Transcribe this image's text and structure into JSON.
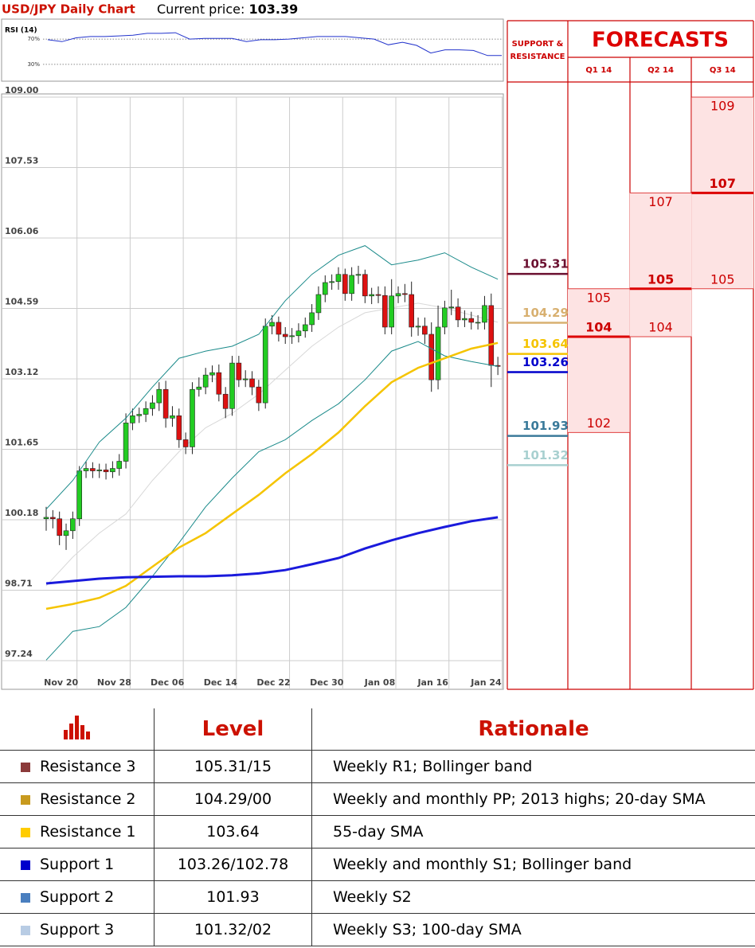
{
  "header": {
    "title": "USD/JPY Daily Chart",
    "price_label": "Current price:",
    "price": 103.39
  },
  "chart_data": [
    {
      "type": "line",
      "title": "RSI (14)",
      "color": "#2233cc",
      "values": [
        69,
        66,
        72,
        74,
        74,
        75,
        76,
        79,
        79,
        80,
        70,
        71,
        71,
        71,
        66,
        69,
        69,
        70,
        72,
        74,
        74,
        74,
        72,
        70,
        61,
        65,
        60,
        48,
        53,
        53,
        52,
        44,
        44
      ],
      "ylim": [
        6,
        94
      ],
      "yticks": [
        {
          "value": 70,
          "label": "70%"
        },
        {
          "value": 30,
          "label": "30%"
        }
      ]
    },
    {
      "type": "candlestick",
      "categories": [
        null,
        null,
        "Nov 20",
        null,
        null,
        null,
        null,
        null,
        null,
        null,
        "Nov 28",
        null,
        null,
        null,
        null,
        null,
        null,
        null,
        "Dec 06",
        null,
        null,
        null,
        null,
        null,
        null,
        null,
        "Dec 14",
        null,
        null,
        null,
        null,
        null,
        null,
        null,
        "Dec 22",
        null,
        null,
        null,
        null,
        null,
        null,
        null,
        "Dec 30",
        null,
        null,
        null,
        null,
        null,
        null,
        null,
        "Jan 08",
        null,
        null,
        null,
        null,
        null,
        null,
        null,
        "Jan 16",
        null,
        null,
        null,
        null,
        null,
        null,
        null,
        "Jan 24",
        null,
        null
      ],
      "open": [
        100.2,
        100.23,
        100.2,
        99.85,
        99.95,
        100.2,
        101.2,
        101.25,
        101.2,
        101.22,
        101.18,
        101.25,
        101.4,
        102.2,
        102.35,
        102.38,
        102.5,
        102.62,
        102.9,
        102.3,
        102.35,
        101.85,
        101.7,
        102.9,
        102.95,
        103.2,
        103.25,
        102.8,
        102.5,
        103.45,
        103.1,
        103.12,
        102.95,
        102.62,
        104.22,
        104.3,
        104.05,
        104.0,
        104.02,
        104.12,
        104.25,
        104.5,
        104.88,
        105.13,
        105.15,
        105.3,
        104.9,
        105.28,
        105.3,
        104.85,
        104.88,
        104.86,
        104.2,
        104.85,
        104.9,
        104.88,
        104.2,
        104.22,
        104.05,
        103.1,
        104.2,
        104.6,
        104.62,
        104.35,
        104.38,
        104.3,
        104.3,
        104.65,
        103.4
      ],
      "high": [
        100.45,
        100.38,
        100.35,
        100.1,
        100.35,
        101.3,
        101.4,
        101.38,
        101.35,
        101.35,
        101.4,
        101.55,
        102.4,
        102.5,
        102.52,
        102.65,
        102.78,
        103.05,
        103.08,
        102.55,
        102.5,
        102.0,
        103.05,
        103.15,
        103.35,
        103.4,
        103.42,
        102.95,
        103.6,
        103.6,
        103.3,
        103.28,
        103.1,
        104.38,
        104.45,
        104.42,
        104.2,
        104.18,
        104.28,
        104.4,
        104.68,
        105.05,
        105.28,
        105.3,
        105.45,
        105.42,
        105.45,
        105.48,
        105.4,
        105.02,
        105.05,
        105.05,
        105.2,
        105.05,
        105.1,
        105.15,
        104.4,
        104.4,
        104.3,
        104.65,
        104.75,
        104.98,
        104.8,
        104.55,
        104.52,
        104.45,
        104.85,
        104.9,
        103.58
      ],
      "low": [
        99.95,
        100.0,
        99.65,
        99.55,
        99.78,
        100.05,
        101.05,
        101.05,
        101.05,
        101.02,
        101.05,
        101.1,
        101.25,
        102.05,
        102.2,
        102.22,
        102.35,
        102.45,
        102.1,
        102.12,
        101.68,
        101.55,
        101.55,
        102.75,
        102.8,
        103.05,
        102.65,
        102.3,
        102.35,
        102.95,
        102.95,
        102.78,
        102.45,
        102.5,
        104.05,
        103.9,
        103.85,
        103.85,
        103.88,
        103.98,
        104.1,
        104.35,
        104.72,
        104.98,
        104.98,
        104.75,
        104.75,
        105.1,
        104.7,
        104.68,
        104.7,
        104.05,
        104.05,
        104.7,
        104.72,
        104.0,
        104.02,
        103.85,
        102.85,
        102.9,
        104.05,
        104.45,
        104.2,
        104.2,
        104.15,
        104.15,
        104.15,
        102.95,
        103.2
      ],
      "close": [
        100.23,
        100.2,
        99.85,
        99.95,
        100.2,
        101.2,
        101.25,
        101.2,
        101.22,
        101.18,
        101.25,
        101.4,
        102.2,
        102.35,
        102.38,
        102.5,
        102.62,
        102.9,
        102.3,
        102.35,
        101.85,
        101.7,
        102.9,
        102.95,
        103.2,
        103.25,
        102.8,
        102.5,
        103.45,
        103.1,
        103.12,
        102.95,
        102.62,
        104.22,
        104.3,
        104.05,
        104.0,
        104.02,
        104.12,
        104.25,
        104.5,
        104.88,
        105.13,
        105.15,
        105.3,
        104.9,
        105.28,
        105.3,
        104.85,
        104.88,
        104.86,
        104.2,
        104.85,
        104.9,
        104.88,
        104.2,
        104.22,
        104.05,
        103.1,
        104.2,
        104.6,
        104.62,
        104.35,
        104.38,
        104.3,
        104.3,
        104.65,
        103.4,
        103.38
      ],
      "up_color": "#22cc22",
      "down_color": "#dd1111",
      "series": [
        {
          "color": "#d8d8d8",
          "x": [
            0,
            4,
            8,
            12,
            16,
            20,
            24,
            28,
            32,
            36,
            40,
            44,
            48,
            52,
            56,
            60,
            64,
            68
          ],
          "values": [
            98.8,
            99.4,
            99.9,
            100.3,
            101.0,
            101.6,
            102.1,
            102.4,
            102.8,
            103.3,
            103.8,
            104.2,
            104.5,
            104.6,
            104.7,
            104.6,
            104.45,
            104.3
          ]
        },
        {
          "color": "#1a8a8a",
          "x": [
            0,
            4,
            8,
            12,
            16,
            20,
            24,
            28,
            32,
            36,
            40,
            44,
            48,
            52,
            56,
            60,
            64,
            68
          ],
          "values": [
            100.4,
            101.0,
            101.8,
            102.3,
            102.95,
            103.55,
            103.7,
            103.8,
            104.05,
            104.75,
            105.3,
            105.7,
            105.9,
            105.5,
            105.6,
            105.75,
            105.45,
            105.2
          ]
        },
        {
          "color": "#1a8a8a",
          "x": [
            0,
            4,
            8,
            12,
            16,
            20,
            24,
            28,
            32,
            36,
            40,
            44,
            48,
            52,
            56,
            60,
            64,
            68
          ],
          "values": [
            97.25,
            97.85,
            97.95,
            98.35,
            99.0,
            99.7,
            100.45,
            101.05,
            101.6,
            101.85,
            102.25,
            102.6,
            103.1,
            103.7,
            103.9,
            103.6,
            103.48,
            103.38
          ]
        },
        {
          "color": "#f5c400",
          "x": [
            0,
            4,
            8,
            12,
            16,
            20,
            24,
            28,
            32,
            36,
            40,
            44,
            48,
            52,
            56,
            60,
            64,
            68
          ],
          "values": [
            98.32,
            98.42,
            98.55,
            98.8,
            99.2,
            99.6,
            99.9,
            100.3,
            100.7,
            101.15,
            101.55,
            102.0,
            102.55,
            103.05,
            103.35,
            103.55,
            103.75,
            103.87
          ]
        },
        {
          "color": "#1a1adc",
          "x": [
            0,
            4,
            8,
            12,
            16,
            20,
            24,
            28,
            32,
            36,
            40,
            44,
            48,
            52,
            56,
            60,
            64,
            68
          ],
          "values": [
            98.85,
            98.9,
            98.95,
            98.98,
            98.99,
            99.0,
            99.0,
            99.02,
            99.06,
            99.13,
            99.25,
            99.38,
            99.58,
            99.75,
            99.9,
            100.03,
            100.15,
            100.23
          ]
        }
      ],
      "ylim": [
        96.94,
        109.0
      ],
      "yticks": [
        {
          "value": 109,
          "label": "109.00"
        },
        107.53,
        106.06,
        104.59,
        103.12,
        101.65,
        100.18,
        98.71,
        97.24
      ],
      "grid": true
    }
  ],
  "levels_panel": {
    "title": "SUPPORT & RESISTANCE",
    "levels": [
      {
        "value": 105.31,
        "color": "#6b1030"
      },
      {
        "value": 104.29,
        "color": "#d8b070"
      },
      {
        "value": 103.64,
        "color": "#f5c400"
      },
      {
        "value": 103.26,
        "color": "#0000cc"
      },
      {
        "value": 101.93,
        "color": "#3a7a9a"
      },
      {
        "value": 101.32,
        "color": "#a8d0d0"
      }
    ]
  },
  "forecasts": {
    "title": "FORECASTS",
    "columns": [
      {
        "label": "Q1 14",
        "high": 105,
        "target": 104,
        "low": 102
      },
      {
        "label": "Q2 14",
        "high": 107,
        "target": 105,
        "low": 104
      },
      {
        "label": "Q3 14",
        "high": 109,
        "target": 107,
        "low": 105
      }
    ]
  },
  "table": {
    "header": [
      "Level",
      "Rationale"
    ],
    "rows": [
      {
        "color": "#8b3a3a",
        "name": "Resistance 3",
        "level": "105.31/15",
        "rationale": "Weekly R1; Bollinger band"
      },
      {
        "color": "#c89a1e",
        "name": "Resistance 2",
        "level": "104.29/00",
        "rationale": "Weekly and monthly PP; 2013 highs; 20-day SMA"
      },
      {
        "color": "#ffcc00",
        "name": "Resistance 1",
        "level": "103.64",
        "rationale": "55-day SMA"
      },
      {
        "color": "#0000cc",
        "name": "Support 1",
        "level": "103.26/102.78",
        "rationale": "Weekly and monthly S1; Bollinger band"
      },
      {
        "color": "#4a7fbf",
        "name": "Support 2",
        "level": "101.93",
        "rationale": "Weekly S2"
      },
      {
        "color": "#b8cce4",
        "name": "Support 3",
        "level": "101.32/02",
        "rationale": "Weekly S3; 100-day SMA"
      }
    ]
  }
}
